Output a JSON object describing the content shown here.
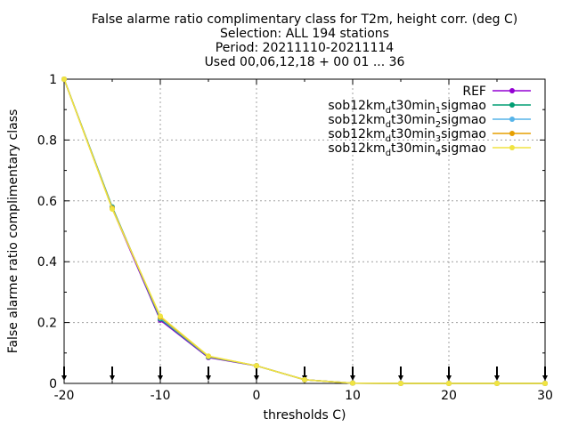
{
  "chart_data": {
    "type": "line",
    "title_lines": [
      "False alarme ratio complimentary class  for T2m, height corr. (deg C)",
      "Selection: ALL    194 stations",
      "Period: 20211110-20211114",
      "Used 00,06,12,18 + 00 01 ... 36"
    ],
    "xlabel": "thresholds C)",
    "ylabel": "False alarme ratio complimentary class",
    "xlim": [
      -20,
      30
    ],
    "ylim": [
      0,
      1
    ],
    "xticks": [
      -20,
      -10,
      0,
      10,
      20,
      30
    ],
    "yticks": [
      0,
      0.2,
      0.4,
      0.6,
      0.8,
      1
    ],
    "ytick_labels": [
      "0",
      "0.2",
      "0.4",
      "0.6",
      "0.8",
      "1"
    ],
    "grid": true,
    "legend_position": "top-right",
    "arrow_markers_x": [
      -20,
      -15,
      -10,
      -5,
      0,
      5,
      10,
      15,
      20,
      25,
      30
    ],
    "x": [
      -20,
      -15,
      -10,
      -5,
      0,
      5,
      10,
      15,
      20,
      25,
      30
    ],
    "series": [
      {
        "name": "REF",
        "name_parts": [
          [
            "REF",
            ""
          ]
        ],
        "color": "#9400d3",
        "values": [
          1.0,
          0.575,
          0.208,
          0.085,
          0.058,
          0.012,
          0.001,
          0.0,
          0.0,
          0.0,
          0.0
        ]
      },
      {
        "name": "sob12km_dt30min_1sigmao",
        "name_parts": [
          [
            "sob12km",
            ""
          ],
          [
            "d",
            "sub"
          ],
          [
            "t30min",
            ""
          ],
          [
            "1",
            "sub"
          ],
          [
            "sigmao",
            ""
          ]
        ],
        "color": "#009e73",
        "values": [
          1.0,
          0.58,
          0.212,
          0.087,
          0.058,
          0.012,
          0.001,
          0.0,
          0.0,
          0.0,
          0.0
        ]
      },
      {
        "name": "sob12km_dt30min_2sigmao",
        "name_parts": [
          [
            "sob12km",
            ""
          ],
          [
            "d",
            "sub"
          ],
          [
            "t30min",
            ""
          ],
          [
            "2",
            "sub"
          ],
          [
            "sigmao",
            ""
          ]
        ],
        "color": "#56b4e9",
        "values": [
          1.0,
          0.578,
          0.215,
          0.088,
          0.058,
          0.012,
          0.001,
          0.0,
          0.0,
          0.0,
          0.0
        ]
      },
      {
        "name": "sob12km_dt30min_3sigmao",
        "name_parts": [
          [
            "sob12km",
            ""
          ],
          [
            "d",
            "sub"
          ],
          [
            "t30min",
            ""
          ],
          [
            "3",
            "sub"
          ],
          [
            "sigmao",
            ""
          ]
        ],
        "color": "#e69f00",
        "values": [
          1.0,
          0.576,
          0.218,
          0.089,
          0.058,
          0.012,
          0.001,
          0.0,
          0.0,
          0.0,
          0.0
        ]
      },
      {
        "name": "sob12km_dt30min_4sigmao",
        "name_parts": [
          [
            "sob12km",
            ""
          ],
          [
            "d",
            "sub"
          ],
          [
            "t30min",
            ""
          ],
          [
            "4",
            "sub"
          ],
          [
            "sigmao",
            ""
          ]
        ],
        "color": "#f0e442",
        "values": [
          1.0,
          0.573,
          0.221,
          0.09,
          0.058,
          0.012,
          0.001,
          0.0,
          0.0,
          0.0,
          0.0
        ]
      }
    ]
  }
}
